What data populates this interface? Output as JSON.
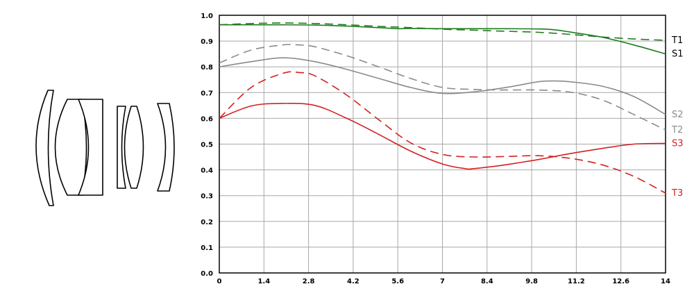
{
  "chart_data": {
    "type": "line",
    "xlim": [
      0,
      14
    ],
    "ylim": [
      0,
      1.0
    ],
    "x_ticks": [
      "0",
      "1.4",
      "2.8",
      "4.2",
      "5.6",
      "7",
      "8.4",
      "9.8",
      "11.2",
      "12.6",
      "14"
    ],
    "y_ticks": [
      "0.0",
      "0.1",
      "0.2",
      "0.3",
      "0.4",
      "0.5",
      "0.6",
      "0.7",
      "0.8",
      "0.9",
      "1.0"
    ],
    "grid": true,
    "series": [
      {
        "name": "S1",
        "color": "#1e7b1e",
        "dash": false,
        "x": [
          0,
          1,
          2,
          3,
          4,
          5,
          5.6,
          6,
          7,
          8,
          9,
          10,
          10.5,
          11,
          12,
          13,
          14
        ],
        "y": [
          0.963,
          0.963,
          0.963,
          0.962,
          0.958,
          0.952,
          0.948,
          0.949,
          0.948,
          0.948,
          0.948,
          0.947,
          0.944,
          0.935,
          0.915,
          0.885,
          0.85
        ]
      },
      {
        "name": "T1",
        "color": "#1e7b1e",
        "dash": true,
        "x": [
          0,
          1,
          2,
          3,
          4,
          5,
          6,
          7,
          8,
          9,
          10,
          11,
          12,
          13,
          14
        ],
        "y": [
          0.963,
          0.968,
          0.97,
          0.968,
          0.963,
          0.957,
          0.952,
          0.946,
          0.942,
          0.938,
          0.934,
          0.926,
          0.916,
          0.908,
          0.903
        ]
      },
      {
        "name": "S2",
        "color": "#8a8a8a",
        "dash": false,
        "x": [
          0,
          1,
          2,
          3,
          4,
          5,
          6,
          7,
          8,
          9,
          10,
          10.5,
          11,
          12,
          13,
          14
        ],
        "y": [
          0.8,
          0.82,
          0.835,
          0.82,
          0.79,
          0.755,
          0.72,
          0.697,
          0.703,
          0.72,
          0.742,
          0.745,
          0.742,
          0.725,
          0.685,
          0.615
        ]
      },
      {
        "name": "T2",
        "color": "#8a8a8a",
        "dash": true,
        "x": [
          0,
          1,
          2,
          2.5,
          3,
          4,
          5,
          6,
          7,
          8,
          9,
          10,
          11,
          12,
          13,
          14
        ],
        "y": [
          0.815,
          0.865,
          0.885,
          0.885,
          0.878,
          0.843,
          0.8,
          0.755,
          0.72,
          0.712,
          0.71,
          0.71,
          0.702,
          0.672,
          0.615,
          0.555
        ]
      },
      {
        "name": "S3",
        "color": "#d42020",
        "dash": false,
        "x": [
          0,
          1,
          2,
          3,
          4,
          5,
          6,
          7,
          7.7,
          8,
          9,
          10,
          11,
          12,
          13,
          14
        ],
        "y": [
          0.6,
          0.648,
          0.658,
          0.65,
          0.6,
          0.538,
          0.473,
          0.423,
          0.405,
          0.405,
          0.42,
          0.44,
          0.463,
          0.483,
          0.5,
          0.503
        ]
      },
      {
        "name": "T3",
        "color": "#d42020",
        "dash": true,
        "x": [
          0,
          1,
          2,
          2.5,
          3,
          4,
          5,
          6,
          7,
          8,
          9,
          10,
          11,
          12,
          13,
          14
        ],
        "y": [
          0.6,
          0.72,
          0.775,
          0.778,
          0.765,
          0.69,
          0.595,
          0.505,
          0.46,
          0.45,
          0.452,
          0.455,
          0.445,
          0.42,
          0.375,
          0.31
        ]
      }
    ]
  }
}
